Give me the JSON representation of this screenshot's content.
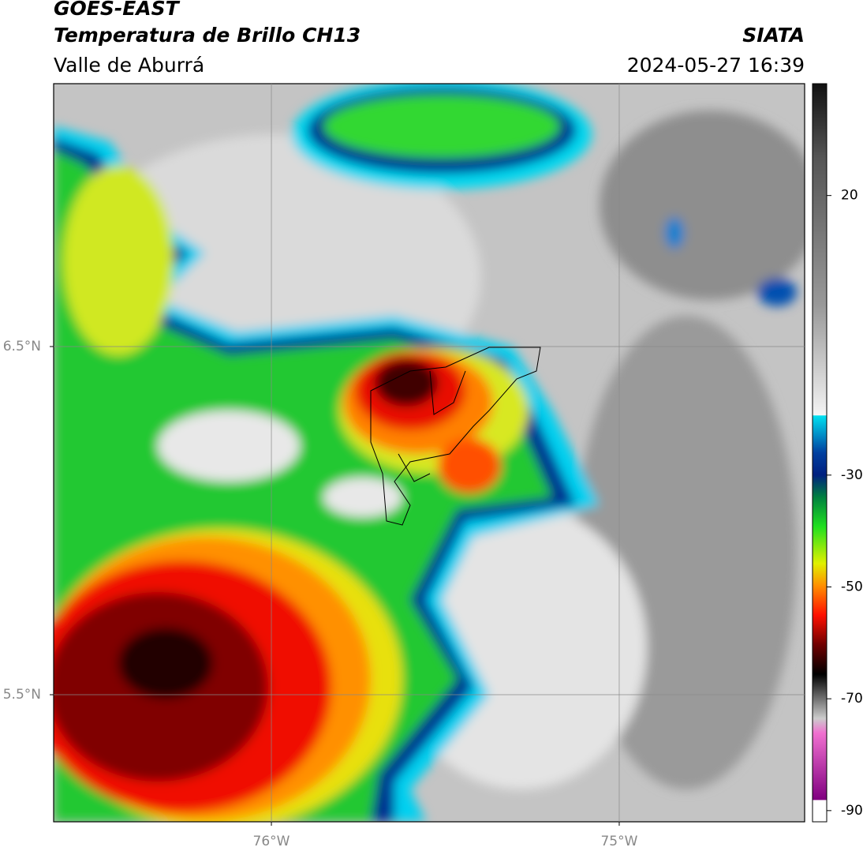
{
  "header": {
    "title": "GOES-EAST",
    "subtitle": "Temperatura de Brillo CH13",
    "region": "Valle de Aburrá",
    "source": "SIATA",
    "datetime": "2024-05-27 16:39"
  },
  "map": {
    "xlim": [
      -76.626,
      -74.467
    ],
    "ylim": [
      5.135,
      7.255
    ],
    "xticks": [
      {
        "value": -76,
        "label": "76°W"
      },
      {
        "value": -75,
        "label": "75°W"
      }
    ],
    "yticks": [
      {
        "value": 6.5,
        "label": "6.5°N"
      },
      {
        "value": 5.5,
        "label": "5.5°N"
      }
    ],
    "grid": true
  },
  "colorbar": {
    "lim": [
      -92,
      40
    ],
    "ticks": [
      20,
      -30,
      -50,
      -70,
      -90
    ]
  }
}
